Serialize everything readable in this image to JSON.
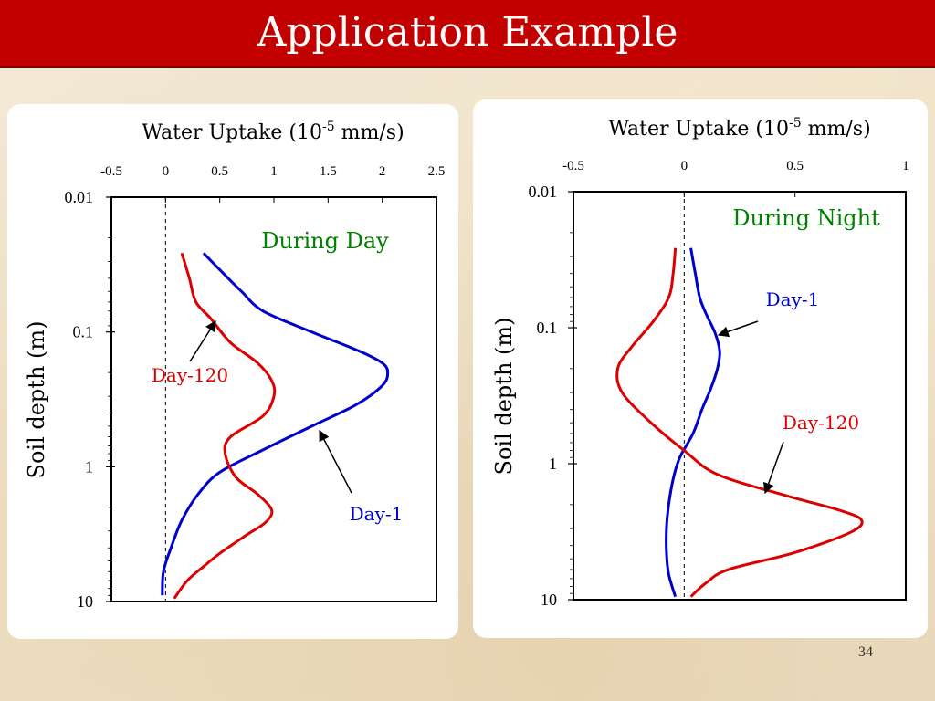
{
  "slide": {
    "title": "Application Example",
    "number": "34",
    "colors": {
      "banner": "#c20000",
      "title": "#ffffff",
      "background": "#efe4cf",
      "panel": "#ffffff"
    }
  },
  "chart_data": [
    {
      "type": "line",
      "title": "During Day",
      "title_color": "#008000",
      "xlabel": "Water Uptake (10-5 mm/s)",
      "xlabel_base": "Water Uptake (10",
      "xlabel_sup": "-5",
      "xlabel_tail": " mm/s)",
      "ylabel": "Soil depth (m)",
      "x_axis_position": "top",
      "xlim": [
        -0.5,
        2.5
      ],
      "xticks": [
        -0.5,
        0,
        0.5,
        1,
        1.5,
        2,
        2.5
      ],
      "xtick_labels": [
        "-0.5",
        "0",
        "0.5",
        "1",
        "1.5",
        "2",
        "2.5"
      ],
      "y_scale": "log",
      "y_inverted": true,
      "ylim": [
        0.01,
        10
      ],
      "yticks": [
        0.01,
        0.1,
        1,
        10
      ],
      "ytick_labels": [
        "0.01",
        "0.1",
        "1",
        "10"
      ],
      "zero_reference_line": "dashed",
      "grid": false,
      "series": [
        {
          "name": "Day-1",
          "color": "#0000cc",
          "points": [
            [
              0.35,
              0.026
            ],
            [
              0.55,
              0.038
            ],
            [
              0.7,
              0.05
            ],
            [
              0.9,
              0.07
            ],
            [
              1.35,
              0.1
            ],
            [
              1.8,
              0.14
            ],
            [
              2.0,
              0.17
            ],
            [
              2.05,
              0.2
            ],
            [
              2.0,
              0.25
            ],
            [
              1.75,
              0.35
            ],
            [
              1.35,
              0.5
            ],
            [
              0.9,
              0.75
            ],
            [
              0.5,
              1.1
            ],
            [
              0.3,
              1.6
            ],
            [
              0.15,
              2.5
            ],
            [
              0.05,
              4
            ],
            [
              -0.02,
              6
            ],
            [
              -0.03,
              9
            ]
          ]
        },
        {
          "name": "Day-120",
          "color": "#dd0000",
          "points": [
            [
              0.15,
              0.026
            ],
            [
              0.22,
              0.04
            ],
            [
              0.28,
              0.06
            ],
            [
              0.42,
              0.08
            ],
            [
              0.6,
              0.12
            ],
            [
              0.85,
              0.17
            ],
            [
              0.98,
              0.23
            ],
            [
              1.0,
              0.3
            ],
            [
              0.9,
              0.42
            ],
            [
              0.6,
              0.6
            ],
            [
              0.55,
              0.8
            ],
            [
              0.65,
              1.2
            ],
            [
              0.85,
              1.6
            ],
            [
              0.98,
              2.1
            ],
            [
              0.92,
              2.6
            ],
            [
              0.75,
              3.2
            ],
            [
              0.5,
              4.4
            ],
            [
              0.35,
              5.5
            ],
            [
              0.2,
              7
            ],
            [
              0.08,
              9.5
            ]
          ]
        }
      ],
      "annotations": [
        {
          "text": "Day-120",
          "color": "#dd0000"
        },
        {
          "text": "Day-1",
          "color": "#0000cc"
        }
      ]
    },
    {
      "type": "line",
      "title": "During Night",
      "title_color": "#008000",
      "xlabel": "Water Uptake (10-5 mm/s)",
      "xlabel_base": "Water Uptake (10",
      "xlabel_sup": "-5",
      "xlabel_tail": " mm/s)",
      "ylabel": "Soil depth (m)",
      "x_axis_position": "top",
      "xlim": [
        -0.5,
        1
      ],
      "xticks": [
        -0.5,
        0,
        0.5,
        1
      ],
      "xtick_labels": [
        "-0.5",
        "0",
        "0.5",
        "1"
      ],
      "y_scale": "log",
      "y_inverted": true,
      "ylim": [
        0.01,
        10
      ],
      "yticks": [
        0.01,
        0.1,
        1,
        10
      ],
      "ytick_labels": [
        "0.01",
        "0.1",
        "1",
        "10"
      ],
      "zero_reference_line": "dashed",
      "grid": false,
      "series": [
        {
          "name": "Day-1",
          "color": "#0000cc",
          "points": [
            [
              0.03,
              0.026
            ],
            [
              0.05,
              0.04
            ],
            [
              0.07,
              0.06
            ],
            [
              0.1,
              0.08
            ],
            [
              0.14,
              0.11
            ],
            [
              0.16,
              0.15
            ],
            [
              0.15,
              0.2
            ],
            [
              0.12,
              0.28
            ],
            [
              0.08,
              0.4
            ],
            [
              0.04,
              0.6
            ],
            [
              -0.02,
              0.9
            ],
            [
              -0.05,
              1.3
            ],
            [
              -0.07,
              2
            ],
            [
              -0.08,
              3
            ],
            [
              -0.08,
              4.5
            ],
            [
              -0.07,
              6.5
            ],
            [
              -0.04,
              9.5
            ]
          ]
        },
        {
          "name": "Day-120",
          "color": "#dd0000",
          "points": [
            [
              -0.04,
              0.026
            ],
            [
              -0.05,
              0.04
            ],
            [
              -0.07,
              0.06
            ],
            [
              -0.14,
              0.09
            ],
            [
              -0.24,
              0.14
            ],
            [
              -0.3,
              0.2
            ],
            [
              -0.28,
              0.3
            ],
            [
              -0.15,
              0.5
            ],
            [
              0.0,
              0.8
            ],
            [
              0.15,
              1.2
            ],
            [
              0.45,
              1.7
            ],
            [
              0.7,
              2.2
            ],
            [
              0.8,
              2.6
            ],
            [
              0.75,
              3.2
            ],
            [
              0.5,
              4.5
            ],
            [
              0.2,
              6
            ],
            [
              0.1,
              7.5
            ],
            [
              0.03,
              9.5
            ]
          ]
        }
      ],
      "annotations": [
        {
          "text": "Day-1",
          "color": "#0000cc"
        },
        {
          "text": "Day-120",
          "color": "#dd0000"
        }
      ]
    }
  ]
}
